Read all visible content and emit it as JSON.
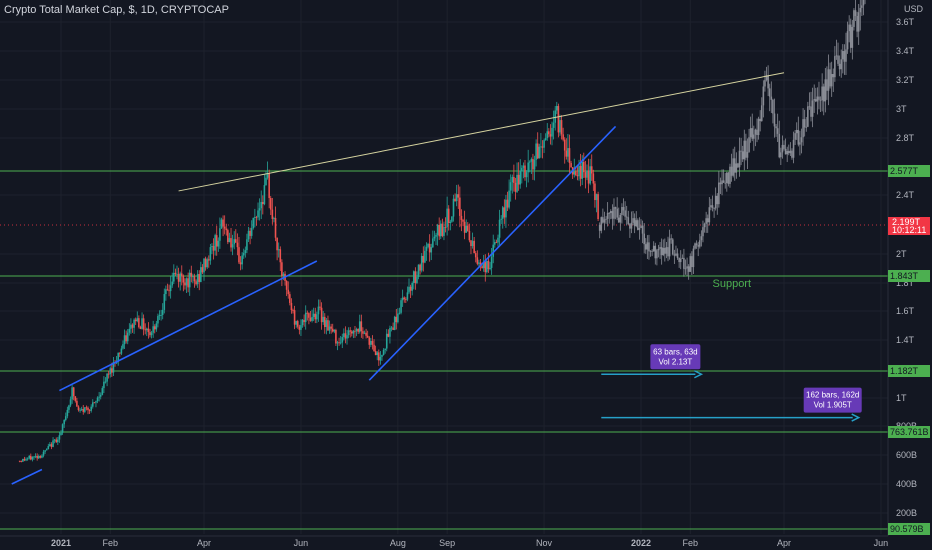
{
  "header": {
    "symbol_title": "Crypto Total Market Cap, $, 1D, CRYPTOCAP"
  },
  "colors": {
    "background": "#131722",
    "candle_up": "#26a69a",
    "candle_down": "#ef5350",
    "projection": "#8a8d96",
    "support_line": "#4caf50",
    "trend_line": "#2962ff",
    "resistance_line": "#d6d4a0",
    "current_price": "#f23645",
    "measure_arrow": "#26a0c8",
    "measure_box": "#673ab7"
  },
  "chart_data": {
    "type": "candlestick",
    "symbol": "Crypto Total Market Cap",
    "currency": "$",
    "interval": "1D",
    "source": "CRYPTOCAP",
    "y_unit": "USD",
    "y_scale": "log",
    "y_ticks": [
      {
        "label": "3.6T",
        "value": 3.6
      },
      {
        "label": "3.4T",
        "value": 3.4
      },
      {
        "label": "3.2T",
        "value": 3.2
      },
      {
        "label": "3T",
        "value": 3.0
      },
      {
        "label": "2.8T",
        "value": 2.8
      },
      {
        "label": "2.4T",
        "value": 2.4
      },
      {
        "label": "2T",
        "value": 2.0
      },
      {
        "label": "1.8T",
        "value": 1.8
      },
      {
        "label": "1.6T",
        "value": 1.6
      },
      {
        "label": "1.4T",
        "value": 1.4
      },
      {
        "label": "1T",
        "value": 1.0
      },
      {
        "label": "800B",
        "value": 0.8
      },
      {
        "label": "600B",
        "value": 0.6
      },
      {
        "label": "400B",
        "value": 0.4
      },
      {
        "label": "200B",
        "value": 0.2
      }
    ],
    "x_ticks": [
      {
        "label": "2021",
        "date": "2021-01-01"
      },
      {
        "label": "Feb",
        "date": "2021-02-01"
      },
      {
        "label": "Apr",
        "date": "2021-04-01"
      },
      {
        "label": "Jun",
        "date": "2021-06-01"
      },
      {
        "label": "Aug",
        "date": "2021-08-01"
      },
      {
        "label": "Sep",
        "date": "2021-09-01"
      },
      {
        "label": "Nov",
        "date": "2021-11-01"
      },
      {
        "label": "2022",
        "date": "2022-01-01"
      },
      {
        "label": "Feb",
        "date": "2022-02-01"
      },
      {
        "label": "Apr",
        "date": "2022-04-01"
      },
      {
        "label": "Jun",
        "date": "2022-06-01"
      }
    ],
    "horizontal_levels": [
      {
        "label": "2.577T",
        "value": 2.577
      },
      {
        "label": "1.843T",
        "value": 1.843
      },
      {
        "label": "1.182T",
        "value": 1.182
      },
      {
        "label": "763.761B",
        "value": 0.76376
      },
      {
        "label": "90.579B",
        "value": 0.09058
      }
    ],
    "current_price": {
      "label": "2.199T",
      "countdown": "10:12:11",
      "value": 2.199
    },
    "price_path": [
      {
        "date": "2020-12-06",
        "value": 0.56
      },
      {
        "date": "2020-12-20",
        "value": 0.6
      },
      {
        "date": "2021-01-01",
        "value": 0.75
      },
      {
        "date": "2021-01-08",
        "value": 1.05
      },
      {
        "date": "2021-01-12",
        "value": 0.9
      },
      {
        "date": "2021-01-22",
        "value": 0.95
      },
      {
        "date": "2021-02-06",
        "value": 1.3
      },
      {
        "date": "2021-02-17",
        "value": 1.55
      },
      {
        "date": "2021-02-27",
        "value": 1.45
      },
      {
        "date": "2021-03-13",
        "value": 1.85
      },
      {
        "date": "2021-03-27",
        "value": 1.8
      },
      {
        "date": "2021-04-13",
        "value": 2.2
      },
      {
        "date": "2021-04-24",
        "value": 1.95
      },
      {
        "date": "2021-05-11",
        "value": 2.5
      },
      {
        "date": "2021-05-19",
        "value": 1.9
      },
      {
        "date": "2021-05-29",
        "value": 1.5
      },
      {
        "date": "2021-06-12",
        "value": 1.6
      },
      {
        "date": "2021-06-24",
        "value": 1.4
      },
      {
        "date": "2021-07-09",
        "value": 1.5
      },
      {
        "date": "2021-07-20",
        "value": 1.27
      },
      {
        "date": "2021-08-07",
        "value": 1.75
      },
      {
        "date": "2021-08-24",
        "value": 2.1
      },
      {
        "date": "2021-09-07",
        "value": 2.35
      },
      {
        "date": "2021-09-20",
        "value": 1.95
      },
      {
        "date": "2021-09-27",
        "value": 1.9
      },
      {
        "date": "2021-10-11",
        "value": 2.45
      },
      {
        "date": "2021-10-23",
        "value": 2.6
      },
      {
        "date": "2021-11-09",
        "value": 2.95
      },
      {
        "date": "2021-11-19",
        "value": 2.6
      },
      {
        "date": "2021-12-01",
        "value": 2.55
      },
      {
        "date": "2021-12-06",
        "value": 2.2
      }
    ],
    "projection_path": [
      {
        "date": "2021-12-06",
        "value": 2.2
      },
      {
        "date": "2021-12-16",
        "value": 2.3
      },
      {
        "date": "2021-12-28",
        "value": 2.2
      },
      {
        "date": "2022-01-09",
        "value": 2.0
      },
      {
        "date": "2022-01-20",
        "value": 2.05
      },
      {
        "date": "2022-01-31",
        "value": 1.9
      },
      {
        "date": "2022-02-15",
        "value": 2.35
      },
      {
        "date": "2022-02-28",
        "value": 2.6
      },
      {
        "date": "2022-03-14",
        "value": 2.85
      },
      {
        "date": "2022-03-22",
        "value": 3.2
      },
      {
        "date": "2022-03-29",
        "value": 2.7
      },
      {
        "date": "2022-04-07",
        "value": 2.75
      },
      {
        "date": "2022-04-19",
        "value": 3.0
      },
      {
        "date": "2022-04-30",
        "value": 3.2
      },
      {
        "date": "2022-05-16",
        "value": 3.6
      },
      {
        "date": "2022-05-22",
        "value": 3.75
      }
    ],
    "trend_lines": [
      {
        "name": "rising-wedge-top",
        "from": {
          "date": "2021-03-16",
          "value": 2.43
        },
        "to": {
          "date": "2022-04-01",
          "value": 3.25
        }
      },
      {
        "name": "uptrend-1",
        "from": {
          "date": "2020-12-31",
          "value": 1.05
        },
        "to": {
          "date": "2021-06-11",
          "value": 1.95
        }
      },
      {
        "name": "uptrend-2",
        "from": {
          "date": "2021-07-14",
          "value": 1.12
        },
        "to": {
          "date": "2021-12-16",
          "value": 2.88
        }
      },
      {
        "name": "base-line",
        "from": {
          "date": "2020-12-01",
          "value": 0.4
        },
        "to": {
          "date": "2020-12-20",
          "value": 0.5
        }
      }
    ],
    "annotations": [
      {
        "text": "Support",
        "date": "2022-02-15",
        "value": 1.8
      },
      {
        "date_range": [
          "2021-12-07",
          "2022-02-08"
        ],
        "value": 1.16,
        "box_line1": "63 bars, 63d",
        "box_line2": "Vol 2.13T"
      },
      {
        "date_range": [
          "2021-12-07",
          "2022-05-18"
        ],
        "value": 0.86,
        "box_line1": "162 bars, 162d",
        "box_line2": "Vol 1.905T"
      }
    ]
  }
}
